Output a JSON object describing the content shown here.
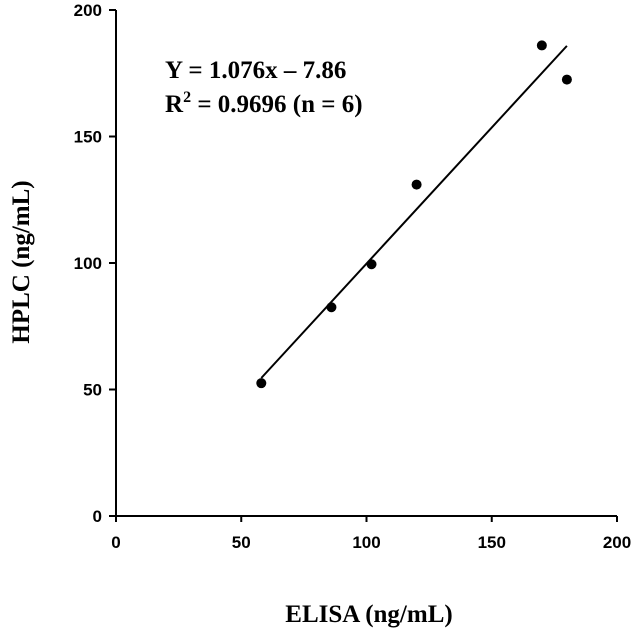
{
  "chart_data": {
    "type": "scatter",
    "title": "",
    "xlabel": "ELISA (ng/mL)",
    "ylabel": "HPLC (ng/mL)",
    "xlim": [
      0,
      200
    ],
    "ylim": [
      0,
      200
    ],
    "x_ticks": [
      0,
      50,
      100,
      150,
      200
    ],
    "y_ticks": [
      0,
      50,
      100,
      150,
      200
    ],
    "grid": false,
    "legend": "none",
    "series": [
      {
        "x": [
          58,
          86,
          102,
          120,
          170,
          180
        ],
        "y": [
          52.5,
          82.5,
          99.5,
          131,
          186,
          172.5
        ]
      }
    ],
    "trendline": {
      "slope": 1.076,
      "intercept": -7.86,
      "x_range": [
        58,
        180
      ]
    },
    "annotations": {
      "equation": "Y = 1.076x – 7.86",
      "r_squared_prefix": "R",
      "r_squared_sup": "2",
      "r_squared_rest": " = 0.9696 (n = 6)"
    },
    "colors": {
      "axis": "#000000",
      "points": "#000000",
      "trendline": "#000000"
    }
  }
}
